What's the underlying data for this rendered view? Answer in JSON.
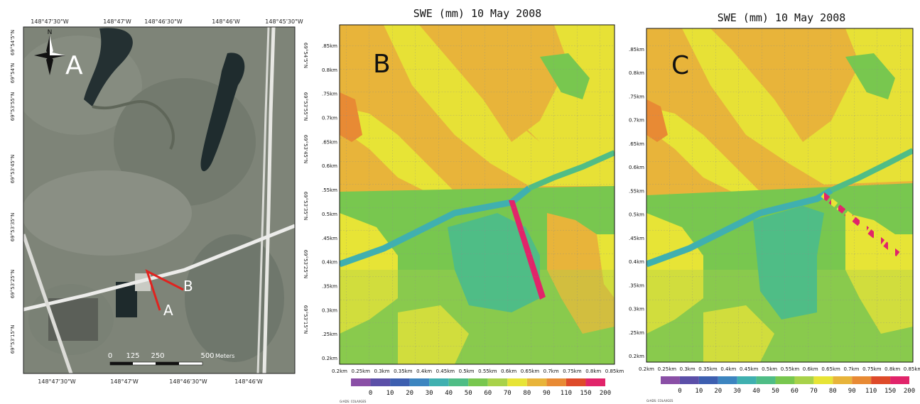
{
  "panel_a": {
    "label": "A",
    "lon_ticks_top": [
      "148°47'30\"W",
      "148°47'W",
      "148°46'30\"W",
      "148°46'W",
      "148°45'30\"W"
    ],
    "lon_ticks_bottom": [
      "148°47'30\"W",
      "148°47'W",
      "148°46'30\"W",
      "148°46'W"
    ],
    "lat_ticks_left": [
      "69°54'5\"N",
      "69°54'N",
      "69°53'55\"N",
      "69°53'45\"N",
      "69°53'35\"N",
      "69°53'25\"N",
      "69°53'15\"N"
    ],
    "lat_ticks_right": [
      "69°54'5\"N",
      "69°53'55\"N",
      "69°53'45\"N",
      "69°53'35\"N",
      "69°53'25\"N",
      "69°53'15\"N"
    ],
    "north_label": "N",
    "transect_start_label": "A",
    "transect_end_label": "B",
    "scale_bar": {
      "ticks": [
        "0",
        "125",
        "250",
        "500"
      ],
      "unit": "Meters"
    }
  },
  "panel_b": {
    "label": "B",
    "title": "SWE (mm) 10 May 2008",
    "credit": "GrADS: COLA/IGES"
  },
  "panel_c": {
    "label": "C",
    "title": "SWE (mm) 10 May 2008",
    "credit": "GrADS: COLA/IGES"
  },
  "axis_ticks_x": [
    "0.2km",
    "0.25km",
    "0.3km",
    "0.35km",
    "0.4km",
    "0.45km",
    "0.5km",
    "0.55km",
    "0.6km",
    "0.65km",
    "0.7km",
    "0.75km",
    "0.8km",
    "0.85km"
  ],
  "axis_ticks_y": [
    ".85km",
    "0.8km",
    ".75km",
    "0.7km",
    ".65km",
    "0.6km",
    ".55km",
    "0.5km",
    ".45km",
    "0.4km",
    ".35km",
    "0.3km",
    ".25km",
    "0.2km"
  ],
  "colorbar": {
    "labels": [
      "0",
      "10",
      "20",
      "30",
      "40",
      "50",
      "60",
      "70",
      "80",
      "90",
      "110",
      "150",
      "200"
    ],
    "colors": [
      "#8a4fa6",
      "#5b4fa8",
      "#3d5fb0",
      "#3c85c0",
      "#3fb0b0",
      "#4fbd86",
      "#78c74f",
      "#a8d24a",
      "#e7e436",
      "#e8b43a",
      "#e88a34",
      "#de4a2a",
      "#e1246a"
    ]
  },
  "map_colors": {
    "orange": "#e8b43a",
    "dark_orange": "#e88a34",
    "yellow": "#e7e436",
    "light_green": "#a8d24a",
    "green": "#78c74f",
    "teal_green": "#4fbd86",
    "teal": "#3fb0b0",
    "magenta": "#e1246a"
  }
}
